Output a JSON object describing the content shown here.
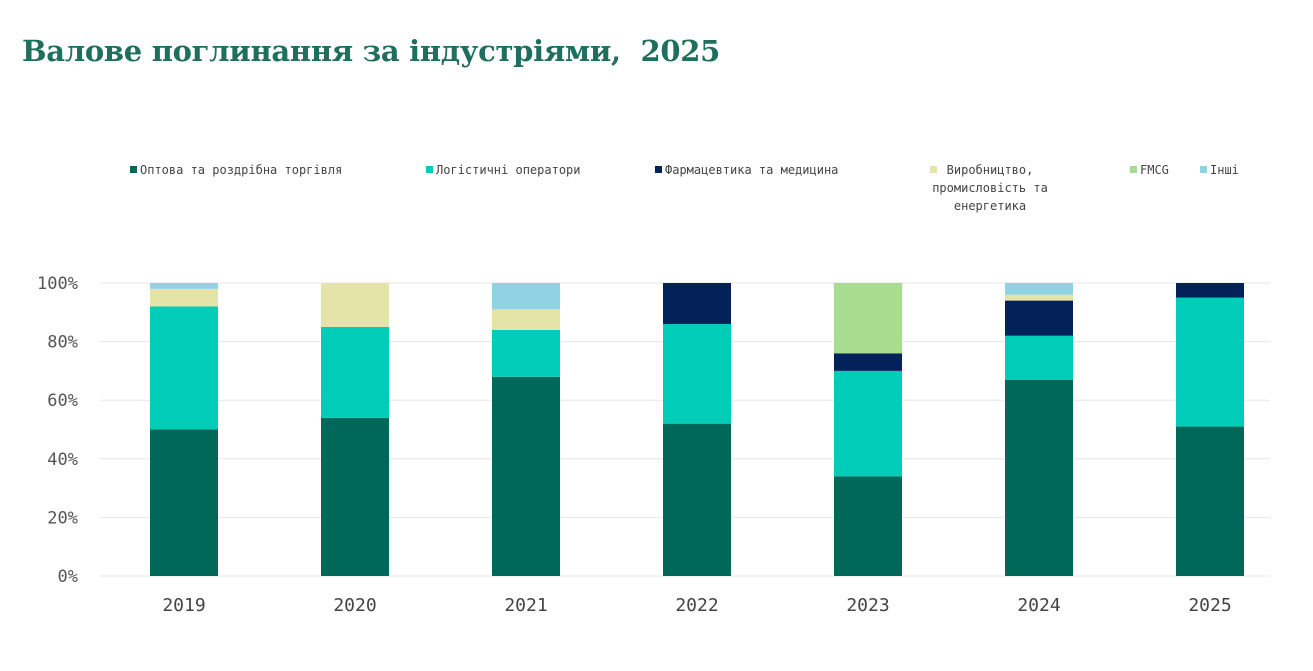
{
  "title": "Валове поглинання за індустріями,  2025",
  "chart_data": {
    "type": "bar",
    "stacked": true,
    "title": "Валове поглинання за індустріями,  2025",
    "categories": [
      "2019",
      "2020",
      "2021",
      "2022",
      "2023",
      "2024",
      "2025"
    ],
    "ylim": [
      0,
      100
    ],
    "yticks": [
      "0%",
      "20%",
      "40%",
      "60%",
      "80%",
      "100%"
    ],
    "grid": true,
    "legend_position": "top",
    "series": [
      {
        "name": "Оптова та роздрібна торгівля",
        "color": "#006858",
        "legend_lines": [
          "Оптова та роздрібна торгівля"
        ],
        "values": [
          50,
          54,
          68,
          52,
          34,
          67,
          51
        ]
      },
      {
        "name": "Логістичні оператори",
        "color": "#00cdb8",
        "legend_lines": [
          "Логістичні оператори"
        ],
        "values": [
          42,
          31,
          16,
          34,
          36,
          15,
          44
        ]
      },
      {
        "name": "Фармацевтика та медицина",
        "color": "#04225a",
        "legend_lines": [
          "Фармацевтика та медицина"
        ],
        "values": [
          0,
          0,
          0,
          14,
          6,
          12,
          5
        ]
      },
      {
        "name": "Виробництво, промисловість та енергетика",
        "color": "#e4e3a8",
        "legend_lines": [
          "Виробництво,",
          "промисловість та",
          "енергетика"
        ],
        "values": [
          6,
          15,
          7,
          0,
          0,
          2,
          0
        ]
      },
      {
        "name": "FMCG",
        "color": "#a8dd90",
        "legend_lines": [
          "FMCG"
        ],
        "values": [
          0,
          0,
          0,
          0,
          24,
          0,
          0
        ]
      },
      {
        "name": "Інші",
        "color": "#8fd3e3",
        "legend_lines": [
          "Інші"
        ],
        "values": [
          2,
          0,
          9,
          0,
          0,
          4,
          0
        ]
      }
    ]
  }
}
